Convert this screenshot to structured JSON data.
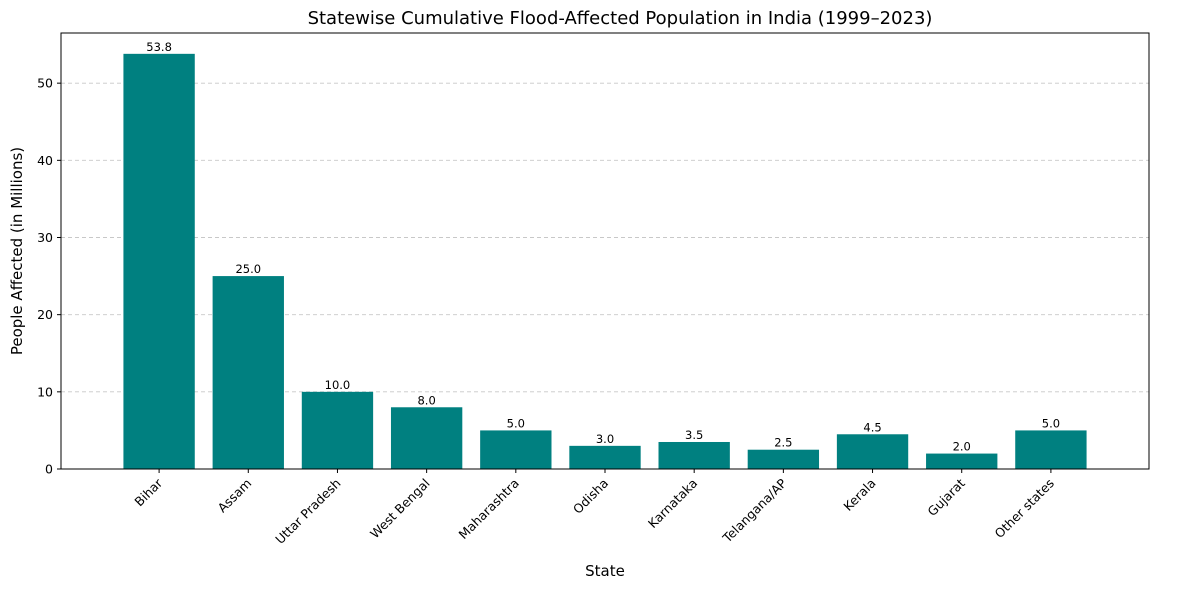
{
  "chart_data": {
    "type": "bar",
    "title": "Statewise Cumulative Flood-Affected Population in India (1999–2023)",
    "xlabel": "State",
    "ylabel": "People Affected (in Millions)",
    "categories": [
      "Bihar",
      "Assam",
      "Uttar Pradesh",
      "West Bengal",
      "Maharashtra",
      "Odisha",
      "Karnataka",
      "Telangana/AP",
      "Kerala",
      "Gujarat",
      "Other states"
    ],
    "values": [
      53.8,
      25.0,
      10.0,
      8.0,
      5.0,
      3.0,
      3.5,
      2.5,
      4.5,
      2.0,
      5.0
    ],
    "data_labels": [
      "53.8",
      "25.0",
      "10.0",
      "8.0",
      "5.0",
      "3.0",
      "3.5",
      "2.5",
      "4.5",
      "2.0",
      "5.0"
    ],
    "ylim": [
      0,
      56.5
    ],
    "yticks": [
      0,
      10,
      20,
      30,
      40,
      50
    ],
    "grid": "y-axis dashed",
    "bar_color": "#008080",
    "grid_color": "#c8c8c8",
    "xtick_rotation": 45
  }
}
